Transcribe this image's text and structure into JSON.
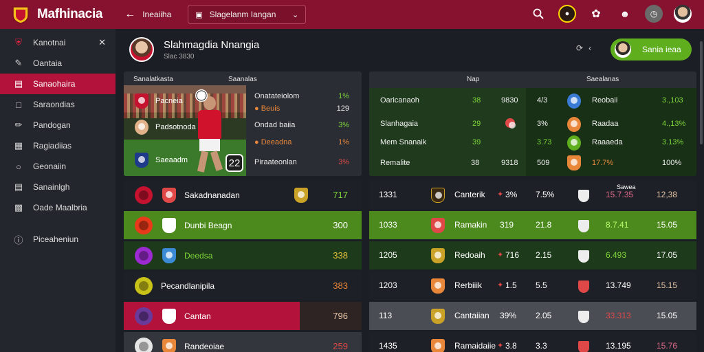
{
  "app": {
    "title": "Mafhinacia"
  },
  "colors": {
    "brand": "#86122f",
    "active": "#b3123a",
    "green": "#5fae1e",
    "red_val": "#e04848",
    "green_val": "#7fd43a",
    "orange_val": "#e8873a"
  },
  "topbar": {
    "back_label": "Ineaiiha",
    "search_text": "Slagelanm Iangan",
    "icons": [
      "search-icon",
      "team-badge-icon",
      "settings-icon",
      "group-icon",
      "clock-icon",
      "user-avatar-icon"
    ]
  },
  "sidebar": {
    "items": [
      {
        "label": "Kanotnai",
        "icon": "shield-icon"
      },
      {
        "label": "Oantaia",
        "icon": "pencil-icon"
      },
      {
        "label": "Sanaohaira",
        "icon": "folder-icon",
        "active": true
      },
      {
        "label": "Saraondias",
        "icon": "file-icon"
      },
      {
        "label": "Pandogan",
        "icon": "edit-icon"
      },
      {
        "label": "Ragiadiias",
        "icon": "grid-icon"
      },
      {
        "label": "Geonaiin",
        "icon": "globe-icon"
      },
      {
        "label": "Sanainlgh",
        "icon": "chart-icon"
      },
      {
        "label": "Oade Maalbria",
        "icon": "table-icon"
      },
      {
        "label": "Piceaheniun",
        "icon": "help-icon"
      }
    ]
  },
  "profile": {
    "name": "Slahmagdia Nnangia",
    "sub": "Slac 3830"
  },
  "cta": {
    "label": "Sania ieaa"
  },
  "panel_left": {
    "header_a": "Sanalatkasta",
    "header_b": "Saanalas",
    "hero_rows": [
      "Pacneia",
      "Padsotnoda",
      "Saeaadm"
    ],
    "hero_badge": "22",
    "stats": [
      {
        "label": "Onatateiolom",
        "value": "1%"
      },
      {
        "label": "Beuis",
        "value": "129"
      },
      {
        "label": "Ondad baiia",
        "value": "3%"
      },
      {
        "label": "Deeadna",
        "value": "1%"
      },
      {
        "label": "Piraateonlan",
        "value": "3%"
      }
    ]
  },
  "panel_right": {
    "header_a": "Nap",
    "header_b": "Saealanas",
    "rows": [
      {
        "name": "Oaricanaoh",
        "a": "38",
        "b": "9830",
        "c": "4/3",
        "team": "Reobaii",
        "d": "3.,103"
      },
      {
        "name": "Slanhagaia",
        "a": "29",
        "b": "",
        "c": "3%",
        "team": "Raadaa",
        "d": "4.,13%"
      },
      {
        "name": "Mem Snanaik",
        "a": "39",
        "b": "",
        "c": "3.73",
        "team": "Raaaeda",
        "d": "3.13%"
      },
      {
        "name": "Remalite",
        "a": "38",
        "b": "9318",
        "c": "509",
        "team": "17.7%",
        "d": "100%"
      }
    ]
  },
  "table_left": [
    {
      "name": "Sakadnanadan",
      "value": "717"
    },
    {
      "name": "Dunbi Beagn",
      "value": "300"
    },
    {
      "name": "Deedsa",
      "value": "338"
    },
    {
      "name": "Pecandlanipila",
      "value": "383"
    },
    {
      "name": "Cantan",
      "value": "796"
    },
    {
      "name": "Randeoiae",
      "value": "259"
    }
  ],
  "table_right_header": "Sawea",
  "table_right": [
    {
      "id": "1331",
      "team": "Canterik",
      "pct": "3%",
      "p2": "7.5%",
      "v1": "15.7.35",
      "v2": "12,38"
    },
    {
      "id": "1033",
      "team": "Ramakin",
      "pct": "319",
      "p2": "21.8",
      "v1": "8.7.41",
      "v2": "15.05"
    },
    {
      "id": "1205",
      "team": "Redoaih",
      "pct": "716",
      "p2": "2.15",
      "v1": "6.493",
      "v2": "17.05"
    },
    {
      "id": "1203",
      "team": "Rerbiiik",
      "pct": "1.5",
      "p2": "5.5",
      "v1": "13.749",
      "v2": "15.15"
    },
    {
      "id": "113",
      "team": "Cantaiian",
      "pct": "39%",
      "p2": "2.05",
      "v1": "33.313",
      "v2": "15.05"
    },
    {
      "id": "1435",
      "team": "Ramaidaiie",
      "pct": "3.8",
      "p2": "3.3",
      "v1": "13.195",
      "v2": "15.76"
    }
  ]
}
